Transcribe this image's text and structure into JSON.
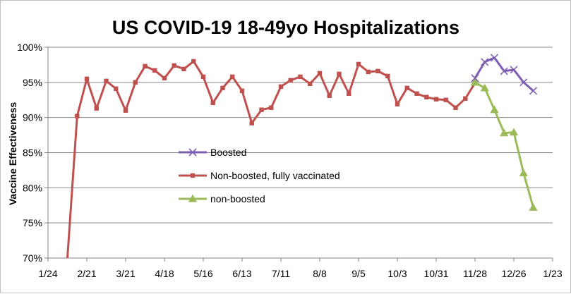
{
  "chart_data": {
    "type": "line",
    "title": "US COVID-19 18-49yo Hospitalizations",
    "xlabel": "",
    "ylabel": "Vaccine Effectiveness",
    "x_tick_labels": [
      "1/24",
      "2/21",
      "3/21",
      "4/18",
      "5/16",
      "6/13",
      "7/11",
      "8/8",
      "9/5",
      "10/3",
      "10/31",
      "11/28",
      "12/26",
      "1/23"
    ],
    "y_tick_labels": [
      "70%",
      "75%",
      "80%",
      "85%",
      "90%",
      "95%",
      "100%"
    ],
    "ylim": [
      70,
      100
    ],
    "grid": "horizontal",
    "legend_position": "center-left",
    "colors": {
      "boosted": "#7f5fb2",
      "non_boosted_fully_vaccinated": "#c0504d",
      "non_boosted": "#9bbb59",
      "gridline": "#868686",
      "axis": "#868686"
    },
    "series": [
      {
        "name": "Boosted",
        "marker": "x",
        "x": [
          44,
          45,
          46,
          47,
          48,
          49,
          50
        ],
        "y": [
          95.6,
          97.9,
          98.5,
          96.6,
          96.8,
          95.0,
          93.8
        ]
      },
      {
        "name": "Non-boosted, fully vaccinated",
        "marker": "square",
        "x": [
          2,
          3,
          4,
          5,
          6,
          7,
          8,
          9,
          10,
          11,
          12,
          13,
          14,
          15,
          16,
          17,
          18,
          19,
          20,
          21,
          22,
          23,
          24,
          25,
          26,
          27,
          28,
          29,
          30,
          31,
          32,
          33,
          34,
          35,
          36,
          37,
          38,
          39,
          40,
          41,
          42,
          43,
          44
        ],
        "y": [
          70.0,
          90.2,
          95.5,
          91.3,
          95.2,
          94.1,
          91.0,
          95.0,
          97.3,
          96.7,
          95.6,
          97.4,
          96.9,
          98.0,
          95.8,
          92.1,
          94.2,
          95.8,
          93.8,
          89.2,
          91.1,
          91.4,
          94.4,
          95.3,
          95.8,
          94.8,
          96.3,
          93.1,
          96.2,
          93.4,
          97.6,
          96.5,
          96.6,
          95.9,
          91.9,
          94.2,
          93.4,
          92.9,
          92.6,
          92.5,
          91.4,
          92.7,
          94.9
        ]
      },
      {
        "name": "non-boosted",
        "marker": "triangle",
        "x": [
          44,
          45,
          46,
          47,
          48,
          49,
          50
        ],
        "y": [
          95.0,
          94.2,
          91.1,
          87.8,
          87.9,
          82.1,
          77.2
        ]
      }
    ],
    "x_axis_note": "weeks since 1/24; tick every 4 weeks"
  }
}
